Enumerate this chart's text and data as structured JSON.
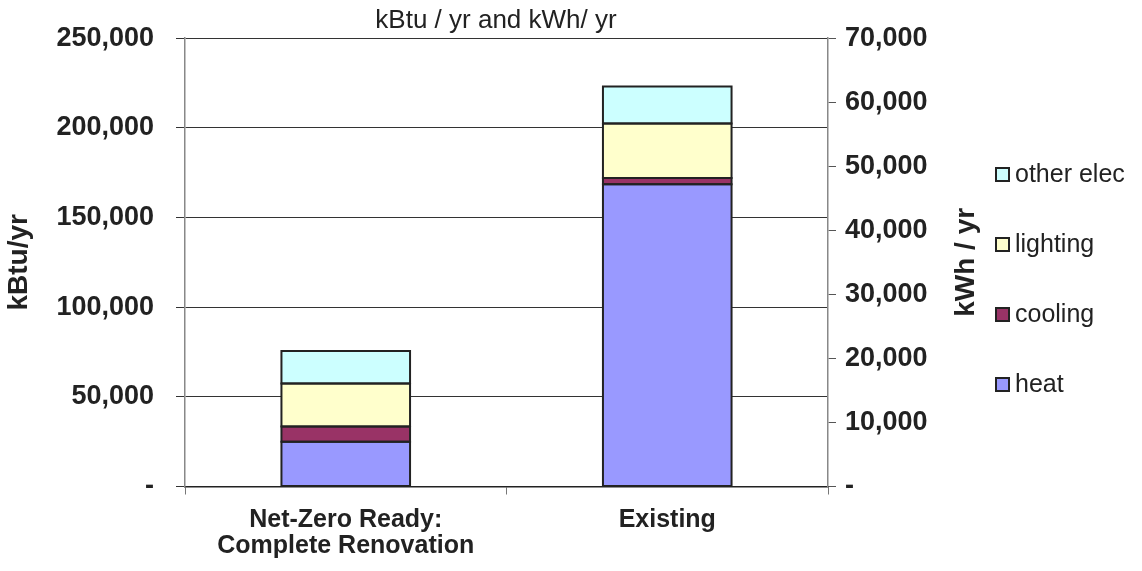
{
  "chart_data": {
    "type": "bar",
    "title": "kBtu / yr and kWh/ yr",
    "ylabel": "kBtu/yr",
    "y2label": "kWh / yr",
    "categories": [
      "Net-Zero Ready:\nComplete Renovation",
      "Existing"
    ],
    "series": [
      {
        "name": "heat",
        "color": "#9999ff",
        "values": [
          25000,
          168500
        ]
      },
      {
        "name": "cooling",
        "color": "#993366",
        "values": [
          8500,
          3500
        ]
      },
      {
        "name": "lighting",
        "color": "#ffffcc",
        "values": [
          24000,
          30500
        ]
      },
      {
        "name": "other elec",
        "color": "#ccffff",
        "values": [
          18000,
          20500
        ]
      }
    ],
    "stacked": true,
    "ylim": [
      0,
      250000
    ],
    "yticks": [
      {
        "value": 0,
        "label": "-"
      },
      {
        "value": 50000,
        "label": "50,000"
      },
      {
        "value": 100000,
        "label": "100,000"
      },
      {
        "value": 150000,
        "label": "150,000"
      },
      {
        "value": 200000,
        "label": "200,000"
      },
      {
        "value": 250000,
        "label": "250,000"
      }
    ],
    "y2lim": [
      0,
      70000
    ],
    "y2ticks": [
      {
        "value": 0,
        "label": "-"
      },
      {
        "value": 10000,
        "label": "10,000"
      },
      {
        "value": 20000,
        "label": "20,000"
      },
      {
        "value": 30000,
        "label": "30,000"
      },
      {
        "value": 40000,
        "label": "40,000"
      },
      {
        "value": 50000,
        "label": "50,000"
      },
      {
        "value": 60000,
        "label": "60,000"
      },
      {
        "value": 70000,
        "label": "70,000"
      }
    ],
    "grid": "y",
    "legend": "right"
  }
}
